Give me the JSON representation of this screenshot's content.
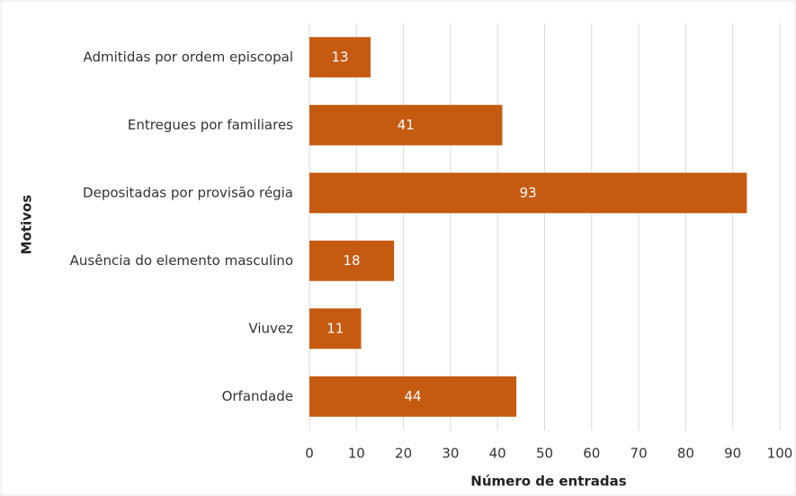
{
  "chart_data": {
    "type": "bar",
    "orientation": "horizontal",
    "xlabel": "Número de entradas",
    "ylabel": "Motivos",
    "categories": [
      "Admitidas por ordem episcopal",
      "Entregues por familiares",
      "Depositadas por provisão régia",
      "Ausência do elemento masculino",
      "Viuvez",
      "Orfandade"
    ],
    "values": [
      13,
      41,
      93,
      18,
      11,
      44
    ],
    "color": "#c55a11",
    "xlim": [
      0,
      100
    ],
    "xticks": [
      0,
      10,
      20,
      30,
      40,
      50,
      60,
      70,
      80,
      90,
      100
    ],
    "grid": true
  }
}
